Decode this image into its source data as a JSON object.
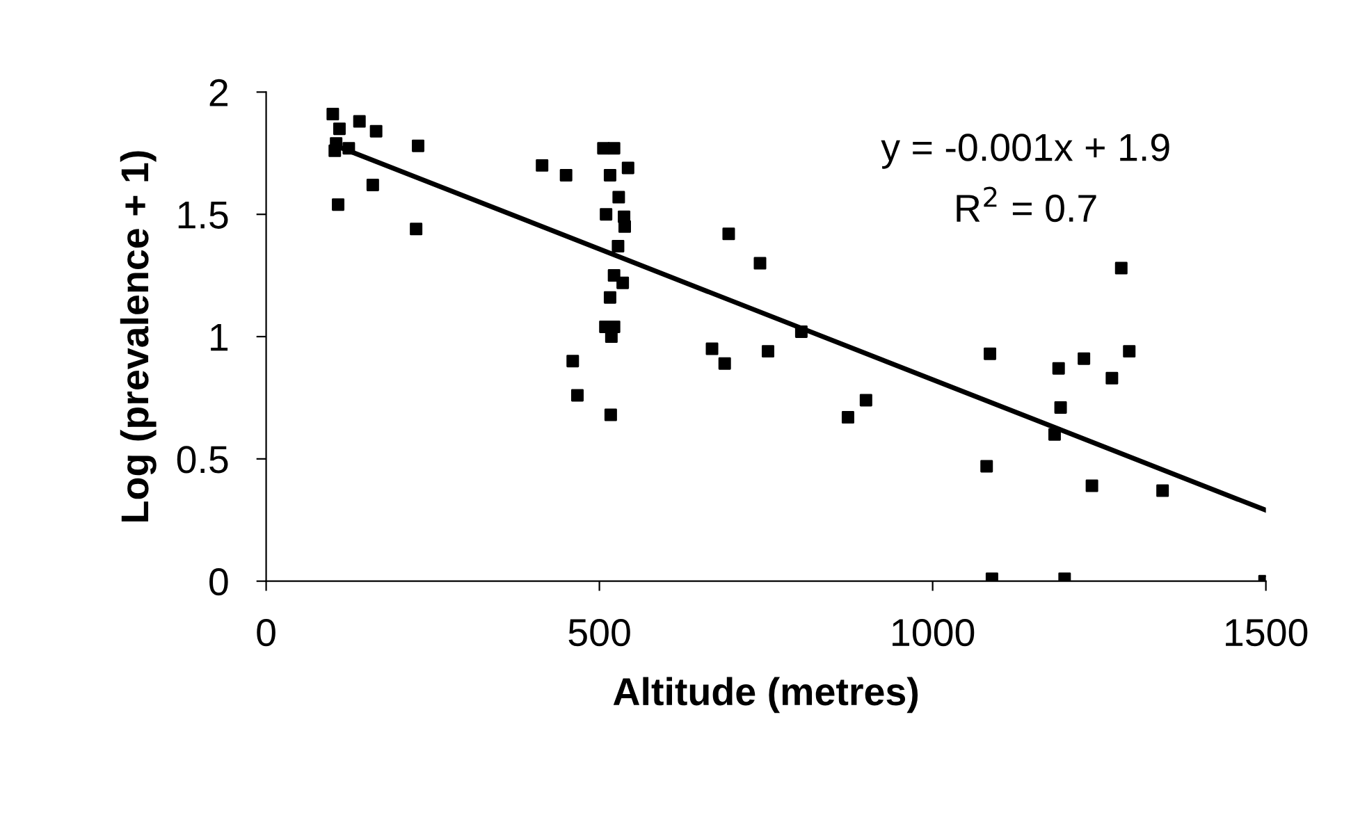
{
  "chart_data": {
    "type": "scatter",
    "xlabel": "Altitude (metres)",
    "ylabel": "Log (prevalence + 1)",
    "xlim": [
      0,
      1500
    ],
    "xticks": [
      0,
      500,
      1000,
      1500
    ],
    "ylim": [
      0,
      2
    ],
    "yticks": [
      0,
      0.5,
      1,
      1.5,
      2
    ],
    "grid": false,
    "legend": false,
    "marker": "square",
    "annotations": [
      "y = -0.001x + 1.9",
      "R$^{2}$ = 0.7"
    ],
    "series": [
      {
        "color": "#000000",
        "x": [
          100,
          110,
          140,
          165,
          105,
          103,
          124,
          108,
          160,
          228,
          225,
          414,
          450,
          506,
          522,
          516,
          543,
          529,
          510,
          537,
          538,
          528,
          522,
          535,
          516,
          509,
          522,
          518,
          460,
          467,
          517,
          694,
          741,
          669,
          688,
          753,
          803,
          873,
          900,
          1086,
          1081,
          1089,
          1189,
          1227,
          1192,
          1183,
          1239,
          1198,
          1269,
          1283,
          1295,
          1345,
          1498
        ],
        "values": [
          1.91,
          1.85,
          1.88,
          1.84,
          1.79,
          1.76,
          1.77,
          1.54,
          1.62,
          1.78,
          1.44,
          1.7,
          1.66,
          1.77,
          1.77,
          1.66,
          1.69,
          1.57,
          1.5,
          1.49,
          1.45,
          1.37,
          1.25,
          1.22,
          1.16,
          1.04,
          1.04,
          1.0,
          0.9,
          0.76,
          0.68,
          1.42,
          1.3,
          0.95,
          0.89,
          0.94,
          1.02,
          0.67,
          0.74,
          0.93,
          0.47,
          0.01,
          0.87,
          0.91,
          0.71,
          0.6,
          0.39,
          0.01,
          0.83,
          1.28,
          0.94,
          0.37,
          0.0
        ]
      },
      {
        "type": "line",
        "color": "#000000",
        "marker": "none",
        "x": [
          105,
          1500
        ],
        "values": [
          1.78,
          0.29
        ]
      }
    ]
  }
}
